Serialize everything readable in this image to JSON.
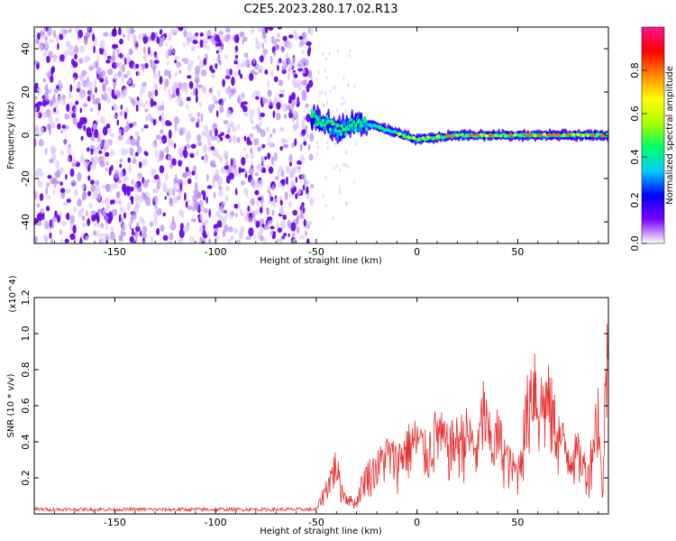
{
  "title": "C2E5.2023.280.17.02.R13",
  "chart_data": [
    {
      "type": "heatmap",
      "name": "spectrogram",
      "xlabel": "Height of straight line (km)",
      "ylabel": "Frequency (Hz)",
      "xlim": [
        -190,
        95
      ],
      "ylim": [
        -50,
        50
      ],
      "xticks": [
        "-150",
        "-100",
        "-50",
        "0",
        "50"
      ],
      "xtick_values": [
        -150,
        -100,
        -50,
        0,
        50
      ],
      "yticks": [
        "-40",
        "-20",
        "0",
        "20",
        "40"
      ],
      "ytick_values": [
        -40,
        -20,
        0,
        20,
        40
      ],
      "colorbar": {
        "label": "Normalized spectral amplitude",
        "range": [
          0,
          1
        ],
        "ticks": [
          "0.0",
          "0.2",
          "0.4",
          "0.6",
          "0.8"
        ],
        "tick_values": [
          0.0,
          0.2,
          0.4,
          0.6,
          0.8
        ],
        "colormap": [
          "#ffffff",
          "#7a00ff",
          "#0000ff",
          "#00ccff",
          "#00ff66",
          "#aaff00",
          "#ffff00",
          "#ff8800",
          "#ff0000",
          "#ff1493"
        ]
      },
      "features": {
        "noise_region_x": [
          -190,
          -52
        ],
        "noise_amplitude_range": [
          0.0,
          0.25
        ],
        "signal_start_x": -52,
        "signal_center_freq": [
          [
            -52,
            8
          ],
          [
            -45,
            6
          ],
          [
            -40,
            2
          ],
          [
            -30,
            6
          ],
          [
            -20,
            4
          ],
          [
            -10,
            1
          ],
          [
            0,
            -2
          ],
          [
            10,
            -1
          ],
          [
            20,
            0
          ],
          [
            40,
            0
          ],
          [
            60,
            0
          ],
          [
            93,
            0
          ]
        ],
        "signal_peak_amplitude": 0.8
      }
    },
    {
      "type": "line",
      "name": "snr",
      "xlabel": "Height of straight line (km)",
      "ylabel": "SNR (10 * v/v)",
      "y_multiplier": "(x10^4)",
      "xlim": [
        -190,
        95
      ],
      "ylim": [
        0,
        1.2
      ],
      "xticks": [
        "-150",
        "-100",
        "-50",
        "0",
        "50"
      ],
      "xtick_values": [
        -150,
        -100,
        -50,
        0,
        50
      ],
      "yticks": [
        "0.2",
        "0.4",
        "0.6",
        "0.8",
        "1.0",
        "1.2"
      ],
      "ytick_values": [
        0.2,
        0.4,
        0.6,
        0.8,
        1.0,
        1.2
      ],
      "color": "#e8312f",
      "series": [
        {
          "envelope": [
            [
              -190,
              0.03
            ],
            [
              -60,
              0.03
            ],
            [
              -50,
              0.03
            ],
            [
              -45,
              0.2
            ],
            [
              -40,
              0.38
            ],
            [
              -38,
              0.2
            ],
            [
              -35,
              0.12
            ],
            [
              -30,
              0.08
            ],
            [
              -28,
              0.2
            ],
            [
              -25,
              0.3
            ],
            [
              -20,
              0.35
            ],
            [
              -15,
              0.45
            ],
            [
              -10,
              0.4
            ],
            [
              -5,
              0.5
            ],
            [
              0,
              0.55
            ],
            [
              5,
              0.45
            ],
            [
              10,
              0.62
            ],
            [
              15,
              0.5
            ],
            [
              20,
              0.55
            ],
            [
              25,
              0.6
            ],
            [
              30,
              0.45
            ],
            [
              33,
              0.8
            ],
            [
              35,
              0.6
            ],
            [
              38,
              0.5
            ],
            [
              40,
              0.6
            ],
            [
              45,
              0.4
            ],
            [
              50,
              0.3
            ],
            [
              55,
              0.8
            ],
            [
              58,
              1.07
            ],
            [
              60,
              0.8
            ],
            [
              65,
              0.85
            ],
            [
              70,
              0.6
            ],
            [
              75,
              0.45
            ],
            [
              80,
              0.45
            ],
            [
              85,
              0.3
            ],
            [
              90,
              0.8
            ],
            [
              92,
              0.1
            ],
            [
              94,
              1.2
            ]
          ]
        }
      ]
    }
  ]
}
